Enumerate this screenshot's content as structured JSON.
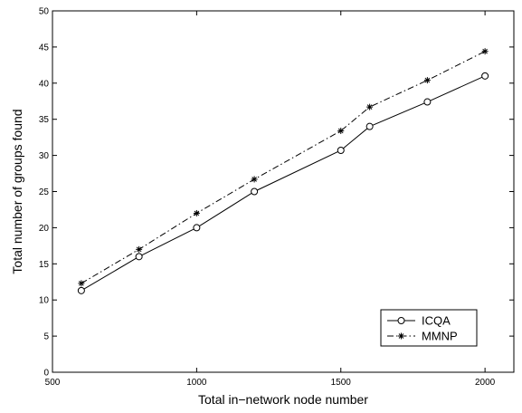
{
  "chart_data": {
    "type": "line",
    "title": "",
    "xlabel": "Total in−network node number",
    "ylabel": "Total number of groups found",
    "xlim": [
      500,
      2100
    ],
    "ylim": [
      0,
      50
    ],
    "xticks": [
      500,
      1000,
      1500,
      2000
    ],
    "yticks": [
      0,
      5,
      10,
      15,
      20,
      25,
      30,
      35,
      40,
      45,
      50
    ],
    "grid": false,
    "legend_position": "bottom-right",
    "series": [
      {
        "name": "ICQA",
        "color": "#000000",
        "line_style": "solid",
        "marker": "circle",
        "x": [
          600,
          800,
          1000,
          1200,
          1500,
          1600,
          1800,
          2000
        ],
        "values": [
          11.3,
          16.0,
          20.0,
          25.0,
          30.7,
          34.0,
          37.4,
          41.0
        ]
      },
      {
        "name": "MMNP",
        "color": "#000000",
        "line_style": "dash-dot",
        "marker": "asterisk",
        "x": [
          600,
          800,
          1000,
          1200,
          1500,
          1600,
          1800,
          2000
        ],
        "values": [
          12.3,
          17.0,
          22.0,
          26.7,
          33.4,
          36.7,
          40.4,
          44.4
        ]
      }
    ]
  }
}
